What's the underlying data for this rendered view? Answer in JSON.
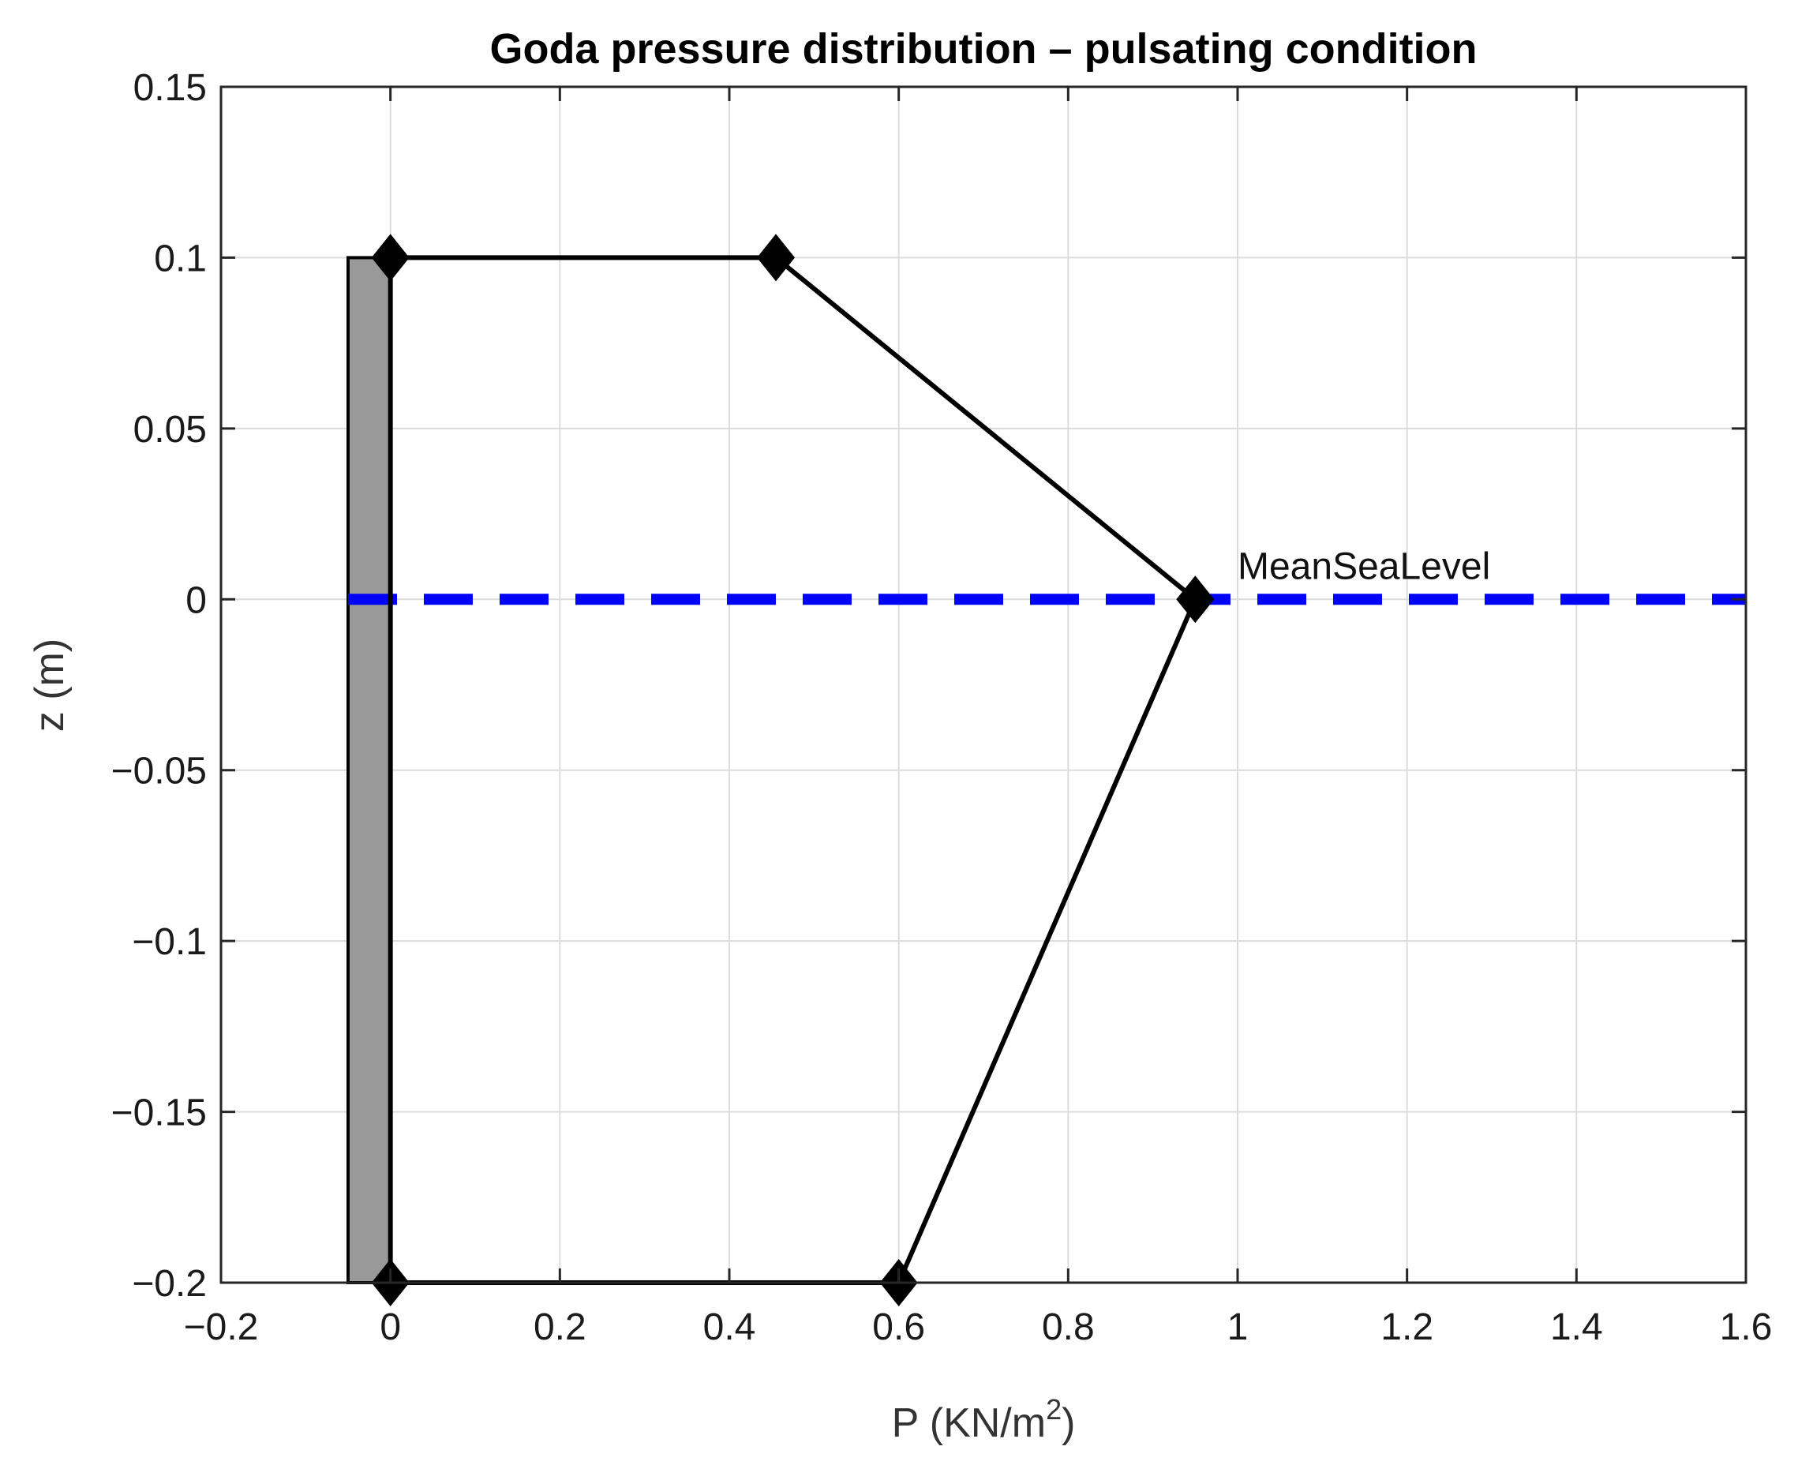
{
  "chart_data": {
    "type": "line",
    "title": "Goda pressure distribution – pulsating condition",
    "xlabel_main": "P (KN/m",
    "xlabel_sup": "2",
    "xlabel_close": ")",
    "ylabel": "z (m)",
    "xlim": [
      -0.2,
      1.6
    ],
    "ylim": [
      -0.2,
      0.15
    ],
    "grid": true,
    "x_ticks": [
      -0.2,
      0,
      0.2,
      0.4,
      0.6,
      0.8,
      1,
      1.2,
      1.4,
      1.6
    ],
    "y_ticks": [
      0.15,
      0.1,
      0.05,
      0,
      -0.05,
      -0.1,
      -0.15,
      -0.2
    ],
    "x_tick_labels": [
      "−0.2",
      "0",
      "0.2",
      "0.4",
      "0.6",
      "0.8",
      "1",
      "1.2",
      "1.4",
      "1.6"
    ],
    "y_tick_labels": [
      "0.15",
      "0.1",
      "0.05",
      "0",
      "−0.05",
      "−0.1",
      "−0.15",
      "−0.2"
    ],
    "pressure_profile": {
      "name": "Goda pressure",
      "color": "#000000",
      "x": [
        0,
        0.455,
        0.95,
        0.6,
        0,
        0
      ],
      "y": [
        0.1,
        0.1,
        0,
        -0.2,
        -0.2,
        0.1
      ]
    },
    "markers": {
      "shape": "diamond",
      "points": [
        {
          "x": 0,
          "y": 0.1
        },
        {
          "x": 0.455,
          "y": 0.1
        },
        {
          "x": 0.95,
          "y": 0
        },
        {
          "x": 0.6,
          "y": -0.2
        },
        {
          "x": 0,
          "y": -0.2
        }
      ]
    },
    "wall": {
      "fill": "#999999",
      "x": [
        -0.05,
        0
      ],
      "y": [
        -0.2,
        0.1
      ]
    },
    "mean_sea_level": {
      "label": "MeanSeaLevel",
      "y": 0,
      "color": "#0000ff",
      "style": "dashed"
    }
  }
}
